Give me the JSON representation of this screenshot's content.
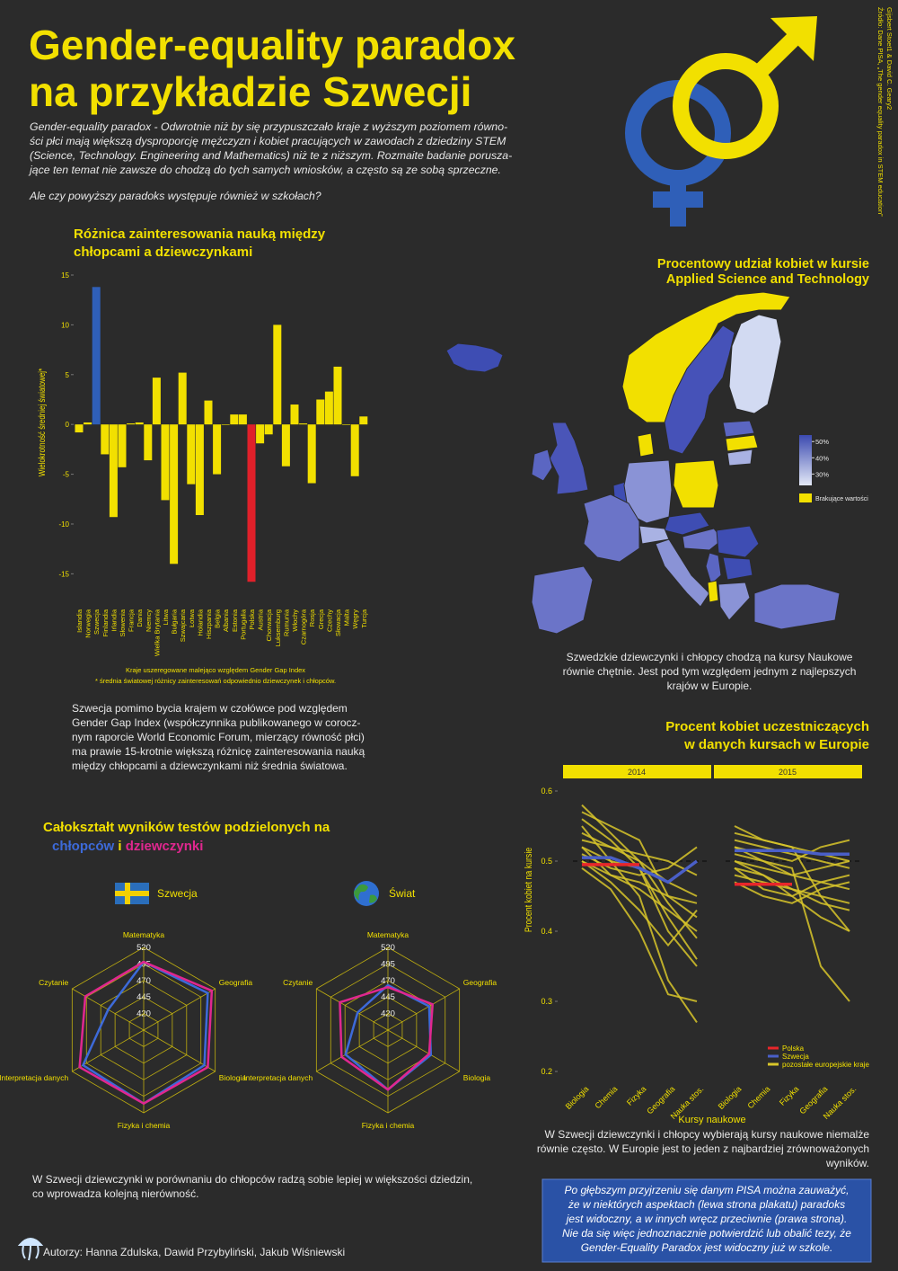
{
  "header": {
    "title": [
      "Gender-equality paradox",
      "na przykładzie Szwecji"
    ],
    "intro": [
      "Gender-equality paradox - Odwrotnie niż by się przypuszczało kraje z wyższym poziomem równo-",
      "ści płci mają większą dysproporcję mężczyzn i kobiet pracujących w zawodach z dziedziny STEM",
      "(Science, Technology. Engineering and Mathematics) niż te z niższym. Rozmaite badanie porusza-",
      "jące ten temat nie zawsze do chodzą do tych samych wniosków, a często są ze sobą sprzeczne."
    ],
    "question": "Ale czy powyższy paradoks występuje również w szkołach?",
    "source": [
      "Źródło: Dane PISA, „The gender equality paradox in STEM education”",
      "Gijsbert Stoet1 & David C. Geary2"
    ]
  },
  "chart_data": [
    {
      "type": "bar",
      "title": [
        "Różnica zainteresowania nauką między",
        "chłopcami a dziewczynkami"
      ],
      "ylabel": "Wielokrotność średniej światowej*",
      "categories": [
        "Islandia",
        "Norwegia",
        "Szwecja",
        "Finlandia",
        "Irlandia",
        "Słowenia",
        "Francja",
        "Dania",
        "Niemcy",
        "Wielka Brytania",
        "Litwa",
        "Bułgaria",
        "Szwajcaria",
        "Łotwa",
        "Holandia",
        "Hiszpania",
        "Belgia",
        "Albania",
        "Estonia",
        "Portugalia",
        "Polska",
        "Austria",
        "Chorwacja",
        "Luksemburg",
        "Rumunia",
        "Włochy",
        "Czarnogóra",
        "Rosja",
        "Grecja",
        "Czechy",
        "Słowacja",
        "Malta",
        "Węgry",
        "Turcja"
      ],
      "values": [
        -0.8,
        0.2,
        13.8,
        -3.0,
        -9.3,
        -4.3,
        0.1,
        0.2,
        -3.6,
        4.7,
        -7.6,
        -14.0,
        5.2,
        -6.0,
        -9.1,
        2.4,
        -5.0,
        0.0,
        1.0,
        1.0,
        -15.8,
        -1.9,
        -1.0,
        10.0,
        -4.2,
        2.0,
        0.1,
        -5.9,
        2.5,
        3.3,
        5.8,
        0.0,
        -5.2,
        0.8
      ],
      "colors": [
        "#f2e000",
        "#f2e000",
        "#2f5fb8",
        "#f2e000",
        "#f2e000",
        "#f2e000",
        "#f2e000",
        "#f2e000",
        "#f2e000",
        "#f2e000",
        "#f2e000",
        "#f2e000",
        "#f2e000",
        "#f2e000",
        "#f2e000",
        "#f2e000",
        "#f2e000",
        "#f2e000",
        "#f2e000",
        "#f2e000",
        "#e0202a",
        "#f2e000",
        "#f2e000",
        "#f2e000",
        "#f2e000",
        "#f2e000",
        "#f2e000",
        "#f2e000",
        "#f2e000",
        "#f2e000",
        "#f2e000",
        "#f2e000",
        "#f2e000",
        "#f2e000"
      ],
      "ylim": [
        -16.5,
        15
      ],
      "yticks": [
        -15,
        -10,
        -5,
        0,
        5,
        10,
        15
      ],
      "notes": [
        "Kraje uszeregowane malejąco względem Gender Gap Index",
        "* średnia światowej różnicy zainteresowań odpowiednio dziewczynek i chłopców."
      ]
    },
    {
      "type": "line",
      "title": [
        "Procent kobiet uczestniczących",
        "w danych kursach w Europie"
      ],
      "panels": [
        "2014",
        "2015"
      ],
      "categories": [
        "Biologia",
        "Chemia",
        "Fizyka",
        "Geografia",
        "Nauka stos."
      ],
      "xlabel": "Kursy naukowe",
      "ylabel": "Procent kobiet na kursie",
      "ylim": [
        0.2,
        0.6
      ],
      "yticks": [
        0.2,
        0.3,
        0.4,
        0.5,
        0.6
      ],
      "reference": 0.5,
      "series": [
        {
          "name": "Polska",
          "color": "#e8262a",
          "values": [
            [
              0.495,
              0.495,
              0.495,
              null,
              null
            ],
            [
              0.467,
              0.467,
              0.467,
              null,
              null
            ]
          ]
        },
        {
          "name": "Szwecja",
          "color": "#4a5fc8",
          "values": [
            [
              0.505,
              0.505,
              0.49,
              0.47,
              0.5
            ],
            [
              0.515,
              0.515,
              0.515,
              0.51,
              0.51
            ]
          ]
        },
        {
          "name": "pozostałe europejskie kraje",
          "color": "#d8c62a",
          "values": [
            [
              [
                0.57,
                0.55,
                0.53,
                0.45,
                0.42
              ],
              [
                0.55,
                0.53,
                0.52,
                0.45,
                0.4
              ]
            ],
            [
              [
                0.52,
                0.5,
                0.49,
                0.4,
                0.35
              ],
              [
                0.52,
                0.5,
                0.48,
                0.47,
                0.46
              ]
            ],
            [
              [
                0.55,
                0.5,
                0.45,
                0.33,
                0.27
              ],
              [
                0.5,
                0.48,
                0.45,
                0.42,
                0.4
              ]
            ],
            [
              [
                0.53,
                0.52,
                0.5,
                0.47,
                0.45
              ],
              [
                0.53,
                0.52,
                0.51,
                0.5,
                0.49
              ]
            ],
            [
              [
                0.5,
                0.47,
                0.43,
                0.38,
                0.43
              ],
              [
                0.49,
                0.46,
                0.45,
                0.47,
                0.48
              ]
            ],
            [
              [
                0.58,
                0.54,
                0.5,
                0.44,
                0.39
              ],
              [
                0.51,
                0.5,
                0.49,
                0.35,
                0.3
              ]
            ],
            [
              [
                0.51,
                0.49,
                0.48,
                0.49,
                0.52
              ],
              [
                0.52,
                0.51,
                0.5,
                0.52,
                0.53
              ]
            ],
            [
              [
                0.49,
                0.46,
                0.4,
                0.31,
                0.3
              ],
              [
                0.48,
                0.47,
                0.46,
                0.44,
                0.43
              ]
            ],
            [
              [
                0.54,
                0.52,
                0.51,
                0.5,
                0.48
              ],
              [
                0.5,
                0.49,
                0.48,
                0.49,
                0.5
              ]
            ],
            [
              [
                0.52,
                0.48,
                0.46,
                0.43,
                0.4
              ],
              [
                0.54,
                0.53,
                0.52,
                0.51,
                0.5
              ]
            ],
            [
              [
                0.5,
                0.48,
                0.47,
                0.45,
                0.44
              ],
              [
                0.47,
                0.45,
                0.44,
                0.46,
                0.47
              ]
            ],
            [
              [
                0.56,
                0.53,
                0.49,
                0.42,
                0.36
              ],
              [
                0.49,
                0.48,
                0.46,
                0.45,
                0.44
              ]
            ]
          ]
        }
      ]
    },
    {
      "type": "radar",
      "title": "Szwecja",
      "axes": [
        "Matematyka",
        "Geografia",
        "Biologia",
        "Fizyka i chemia",
        "Interpretacja danych",
        "Czytanie"
      ],
      "rlim": [
        395,
        520
      ],
      "rticks": [
        420,
        445,
        470,
        495,
        520
      ],
      "series": [
        {
          "name": "chłopców",
          "color": "#3d6ad9",
          "values": [
            498,
            507,
            501,
            506,
            501,
            457
          ]
        },
        {
          "name": "dziewczynki",
          "color": "#e0278f",
          "values": [
            498,
            514,
            507,
            506,
            507,
            497
          ]
        }
      ]
    },
    {
      "type": "radar",
      "title": "Świat",
      "axes": [
        "Matematyka",
        "Geografia",
        "Biologia",
        "Fizyka i chemia",
        "Interpretacja danych",
        "Czytanie"
      ],
      "rlim": [
        395,
        520
      ],
      "rticks": [
        420,
        445,
        470,
        495,
        520
      ],
      "series": [
        {
          "name": "chłopców",
          "color": "#3d6ad9",
          "values": [
            463,
            467,
            470,
            485,
            469,
            448
          ]
        },
        {
          "name": "dziewczynki",
          "color": "#e0278f",
          "values": [
            460,
            473,
            467,
            485,
            476,
            479
          ]
        }
      ]
    }
  ],
  "map": {
    "title": [
      "Procentowy udział kobiet w kursie",
      "Applied Science and Technology"
    ],
    "scale": {
      "lim": [
        23,
        54
      ],
      "ticks": [
        {
          "value": 50,
          "label": "50%"
        },
        {
          "value": 40,
          "label": "40%"
        },
        {
          "value": 30,
          "label": "30%"
        }
      ],
      "colors": [
        "#e4e9f7",
        "#3c4ab0"
      ]
    },
    "missing": "Brakujące wartości",
    "missing_color": "#f2e000",
    "caption": [
      "Szwedzkie dziewczynki i chłopcy chodzą na kursy Naukowe",
      "równie chętnie. Jest pod tym względem jednym z najlepszych",
      "krajów w Europie."
    ]
  },
  "texts": {
    "bar_caption": [
      "Szwecja pomimo bycia krajem w czołówce pod względem",
      "Gender Gap Index (współczynnika publikowanego w corocz-",
      "nym raporcie World Economic Forum, mierzący równość płci)",
      "ma prawie 15-krotnie większą różnicę zainteresowania nauką",
      "między chłopcami a dziewczynkami niż średnia światowa."
    ],
    "radar_title": "Całokształt wyników testów podzielonych na",
    "radar_and": " i ",
    "radar_caption": [
      "W Szwecji dziewczynki  w porównaniu do chłopców radzą sobie lepiej w większości dziedzin,",
      "co wprowadza kolejną nierówność."
    ],
    "line_caption": [
      "W Szwecji  dziewczynki i chłopcy wybierają kursy naukowe niemalże",
      "równie często. W Europie jest to jeden z najbardziej zrównoważonych",
      "wyników."
    ],
    "conclusion": [
      "Po głębszym przyjrzeniu się danym PISA można zauważyć,",
      "że w niektórych aspektach (lewa strona plakatu) paradoks",
      "jest widoczny, a w innych wręcz przeciwnie (prawa strona).",
      "Nie da się więc jednoznacznie potwierdzić lub obalić tezy, że",
      "Gender-Equality Paradox jest widoczny już w szkole."
    ]
  },
  "footer": {
    "authors": "Autorzy: Hanna Zdulska, Dawid Przybyliński, Jakub Wiśniewski"
  }
}
